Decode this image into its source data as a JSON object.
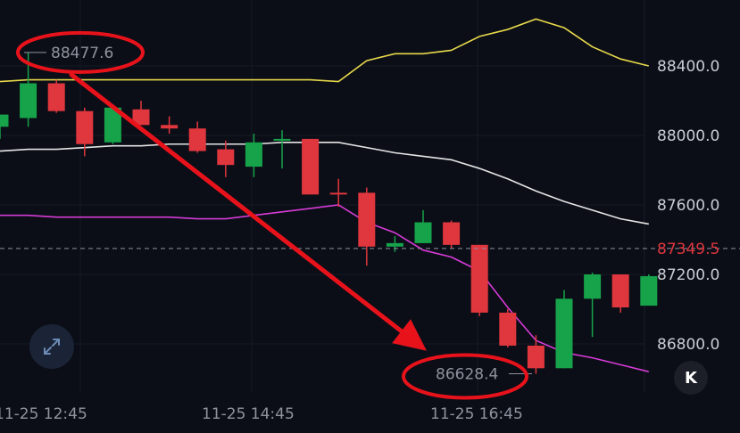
{
  "chart_data": {
    "type": "candlestick",
    "x_labels": [
      "11-25 12:45",
      "11-25 14:45",
      "11-25 16:45"
    ],
    "y_ticks": [
      88400.0,
      88000.0,
      87600.0,
      87200.0,
      86800.0
    ],
    "y_tick_labels": [
      "88400.0",
      "88000.0",
      "87600.0",
      "87200.0",
      "86800.0"
    ],
    "ylim": [
      86500,
      88850
    ],
    "current_price": 87349.5,
    "current_price_label": "87349.5",
    "max_label": "88477.6",
    "min_label": "86628.4",
    "max_value": 88477.6,
    "min_value": 86628.4,
    "candles": [
      {
        "o": 88050,
        "h": 88120,
        "l": 87980,
        "c": 88120,
        "color": "green"
      },
      {
        "o": 88100,
        "h": 88477.6,
        "l": 88050,
        "c": 88300,
        "color": "green"
      },
      {
        "o": 88300,
        "h": 88320,
        "l": 88130,
        "c": 88140,
        "color": "red"
      },
      {
        "o": 88140,
        "h": 88160,
        "l": 87880,
        "c": 87950,
        "color": "red"
      },
      {
        "o": 87960,
        "h": 88160,
        "l": 87950,
        "c": 88160,
        "color": "green"
      },
      {
        "o": 88150,
        "h": 88200,
        "l": 88060,
        "c": 88060,
        "color": "red"
      },
      {
        "o": 88060,
        "h": 88110,
        "l": 88010,
        "c": 88040,
        "color": "red"
      },
      {
        "o": 88040,
        "h": 88080,
        "l": 87900,
        "c": 87910,
        "color": "red"
      },
      {
        "o": 87920,
        "h": 87970,
        "l": 87760,
        "c": 87830,
        "color": "red"
      },
      {
        "o": 87820,
        "h": 88010,
        "l": 87760,
        "c": 87960,
        "color": "green"
      },
      {
        "o": 87970,
        "h": 88030,
        "l": 87810,
        "c": 87980,
        "color": "green"
      },
      {
        "o": 87980,
        "h": 87980,
        "l": 87660,
        "c": 87660,
        "color": "red"
      },
      {
        "o": 87670,
        "h": 87750,
        "l": 87590,
        "c": 87670,
        "color": "red"
      },
      {
        "o": 87670,
        "h": 87700,
        "l": 87250,
        "c": 87360,
        "color": "red"
      },
      {
        "o": 87360,
        "h": 87420,
        "l": 87330,
        "c": 87380,
        "color": "green"
      },
      {
        "o": 87380,
        "h": 87570,
        "l": 87380,
        "c": 87500,
        "color": "green"
      },
      {
        "o": 87500,
        "h": 87510,
        "l": 87350,
        "c": 87370,
        "color": "red"
      },
      {
        "o": 87370,
        "h": 87370,
        "l": 86960,
        "c": 86980,
        "color": "red"
      },
      {
        "o": 86980,
        "h": 87000,
        "l": 86780,
        "c": 86790,
        "color": "red"
      },
      {
        "o": 86790,
        "h": 86850,
        "l": 86628.4,
        "c": 86660,
        "color": "red"
      },
      {
        "o": 86660,
        "h": 87110,
        "l": 86660,
        "c": 87060,
        "color": "green"
      },
      {
        "o": 87060,
        "h": 87210,
        "l": 86840,
        "c": 87200,
        "color": "green"
      },
      {
        "o": 87200,
        "h": 87200,
        "l": 86980,
        "c": 87010,
        "color": "red"
      },
      {
        "o": 87020,
        "h": 87200,
        "l": 87020,
        "c": 87190,
        "color": "green"
      }
    ],
    "series": [
      {
        "color": "#e8d94a",
        "values": [
          88310,
          88320,
          88320,
          88320,
          88320,
          88320,
          88320,
          88320,
          88320,
          88320,
          88320,
          88320,
          88310,
          88430,
          88470,
          88470,
          88490,
          88570,
          88610,
          88670,
          88620,
          88510,
          88440,
          88400
        ]
      },
      {
        "color": "#e6e6e6",
        "values": [
          87910,
          87920,
          87920,
          87930,
          87940,
          87940,
          87950,
          87950,
          87950,
          87950,
          87960,
          87960,
          87960,
          87930,
          87900,
          87880,
          87860,
          87810,
          87750,
          87680,
          87620,
          87570,
          87520,
          87490
        ]
      },
      {
        "color": "#d63bd6",
        "values": [
          87540,
          87540,
          87530,
          87530,
          87530,
          87530,
          87530,
          87520,
          87520,
          87540,
          87560,
          87580,
          87600,
          87500,
          87440,
          87340,
          87300,
          87220,
          87010,
          86820,
          86750,
          86720,
          86680,
          86640
        ]
      }
    ],
    "colors": {
      "up": "#16a34a",
      "down": "#e0363d",
      "annotation": "#e8121b",
      "current_price": "#e0363d"
    },
    "annotations": [
      {
        "type": "ellipse",
        "around": "max_label"
      },
      {
        "type": "ellipse",
        "around": "min_label"
      },
      {
        "type": "arrow",
        "from_value": 88350,
        "to_value": 86760
      }
    ]
  },
  "controls": {
    "expand_icon": "expand-arrows-icon",
    "back_label": "K"
  }
}
